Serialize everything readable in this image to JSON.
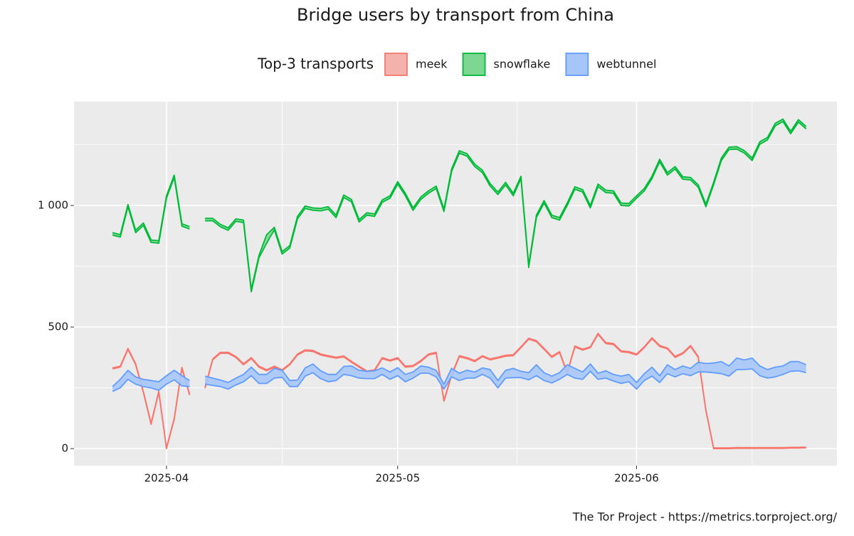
{
  "chart_data": {
    "type": "ribbon",
    "title": "Bridge users by transport from China",
    "legend_title": "Top-3 transports",
    "legend_position": "top",
    "caption": "The Tor Project - https://metrics.torproject.org/",
    "grid": true,
    "xlim": [
      "2025-03-20",
      "2025-06-27"
    ],
    "xticks": [
      {
        "value": "2025-04-01",
        "label": "2025-04"
      },
      {
        "value": "2025-05-01",
        "label": "2025-05"
      },
      {
        "value": "2025-06-01",
        "label": "2025-06"
      }
    ],
    "ylim": [
      -70,
      1427
    ],
    "yticks": [
      0,
      500,
      {
        "value": 1000,
        "label": "1 000"
      }
    ],
    "start": "2025-03-25",
    "series": [
      {
        "name": "meek",
        "color": "#f8766d",
        "fill": "#f4b2ac",
        "low": [
          328,
          335,
          408,
          345,
          230,
          100,
          232,
          0,
          120,
          330,
          220,
          null,
          248,
          365,
          392,
          392,
          375,
          345,
          370,
          335,
          320,
          335,
          320,
          345,
          385,
          402,
          400,
          385,
          378,
          372,
          377,
          355,
          335,
          315,
          320,
          370,
          360,
          370,
          335,
          338,
          358,
          385,
          392,
          195,
          300,
          378,
          370,
          358,
          378,
          365,
          372,
          380,
          382,
          415,
          450,
          440,
          408,
          375,
          395,
          310,
          418,
          405,
          415,
          470,
          432,
          428,
          398,
          395,
          385,
          415,
          452,
          420,
          410,
          375,
          390,
          420,
          375,
          155,
          0,
          0,
          0,
          1,
          1,
          1,
          1,
          1,
          1,
          1,
          2,
          2,
          3
        ],
        "high": [
          332,
          339,
          412,
          349,
          234,
          104,
          236,
          3,
          124,
          334,
          224,
          null,
          252,
          369,
          396,
          396,
          379,
          349,
          374,
          339,
          324,
          339,
          324,
          349,
          389,
          406,
          404,
          389,
          382,
          376,
          381,
          359,
          339,
          319,
          324,
          374,
          364,
          374,
          339,
          342,
          362,
          389,
          396,
          199,
          304,
          382,
          374,
          362,
          382,
          369,
          376,
          384,
          386,
          419,
          454,
          444,
          412,
          379,
          399,
          314,
          422,
          409,
          419,
          474,
          436,
          432,
          402,
          399,
          389,
          419,
          456,
          424,
          414,
          379,
          394,
          424,
          379,
          159,
          3,
          3,
          3,
          4,
          4,
          4,
          4,
          4,
          4,
          4,
          5,
          5,
          6
        ]
      },
      {
        "name": "snowflake",
        "color": "#00ba38",
        "fill": "#7dd692",
        "low": [
          878,
          870,
          995,
          888,
          918,
          848,
          845,
          1030,
          1115,
          915,
          903,
          null,
          937,
          937,
          912,
          898,
          935,
          930,
          645,
          785,
          845,
          900,
          800,
          825,
          945,
          988,
          980,
          978,
          985,
          950,
          1033,
          1015,
          932,
          960,
          955,
          1013,
          1030,
          1088,
          1040,
          980,
          1025,
          1050,
          1070,
          975,
          1140,
          1215,
          1203,
          1160,
          1135,
          1080,
          1045,
          1085,
          1040,
          1110,
          745,
          950,
          1010,
          950,
          940,
          1000,
          1067,
          1055,
          990,
          1078,
          1053,
          1050,
          1000,
          998,
          1030,
          1060,
          1110,
          1180,
          1125,
          1150,
          1108,
          1105,
          1075,
          995,
          1085,
          1185,
          1230,
          1232,
          1215,
          1185,
          1252,
          1270,
          1328,
          1345,
          1295,
          1343,
          1315
        ],
        "high": [
          888,
          880,
          1004,
          898,
          928,
          858,
          855,
          1040,
          1125,
          925,
          913,
          null,
          947,
          947,
          922,
          908,
          945,
          940,
          655,
          795,
          880,
          910,
          810,
          835,
          955,
          998,
          990,
          988,
          995,
          960,
          1043,
          1025,
          942,
          970,
          965,
          1023,
          1040,
          1098,
          1050,
          990,
          1035,
          1060,
          1080,
          985,
          1150,
          1225,
          1213,
          1170,
          1145,
          1090,
          1055,
          1095,
          1050,
          1120,
          755,
          960,
          1020,
          960,
          950,
          1010,
          1077,
          1065,
          1000,
          1088,
          1063,
          1060,
          1010,
          1008,
          1040,
          1070,
          1120,
          1190,
          1135,
          1160,
          1118,
          1115,
          1085,
          1005,
          1095,
          1195,
          1240,
          1242,
          1225,
          1195,
          1262,
          1280,
          1338,
          1355,
          1305,
          1353,
          1325
        ]
      },
      {
        "name": "webtunnel",
        "color": "#619cff",
        "fill": "#a6c6fa",
        "low": [
          235,
          250,
          285,
          265,
          255,
          250,
          240,
          265,
          283,
          258,
          255,
          null,
          265,
          260,
          255,
          245,
          262,
          275,
          300,
          268,
          268,
          290,
          293,
          255,
          255,
          298,
          312,
          288,
          275,
          280,
          305,
          300,
          290,
          288,
          288,
          305,
          285,
          300,
          275,
          290,
          310,
          310,
          295,
          245,
          295,
          280,
          290,
          290,
          305,
          290,
          250,
          290,
          292,
          292,
          283,
          300,
          280,
          270,
          285,
          305,
          290,
          285,
          318,
          285,
          290,
          278,
          268,
          275,
          245,
          280,
          298,
          272,
          308,
          295,
          308,
          300,
          315,
          315,
          312,
          308,
          298,
          325,
          325,
          328,
          300,
          290,
          295,
          305,
          318,
          320,
          312
        ],
        "high": [
          255,
          285,
          322,
          295,
          285,
          280,
          275,
          300,
          322,
          300,
          280,
          null,
          298,
          290,
          282,
          272,
          290,
          305,
          335,
          305,
          305,
          330,
          322,
          280,
          282,
          332,
          348,
          320,
          305,
          305,
          338,
          340,
          322,
          318,
          320,
          332,
          315,
          333,
          305,
          315,
          340,
          335,
          322,
          265,
          330,
          310,
          322,
          315,
          332,
          325,
          280,
          322,
          330,
          318,
          312,
          345,
          312,
          298,
          312,
          345,
          330,
          315,
          348,
          310,
          320,
          305,
          298,
          305,
          272,
          308,
          335,
          300,
          345,
          325,
          340,
          330,
          355,
          350,
          352,
          358,
          340,
          372,
          365,
          372,
          340,
          325,
          335,
          340,
          358,
          358,
          345
        ]
      }
    ]
  }
}
